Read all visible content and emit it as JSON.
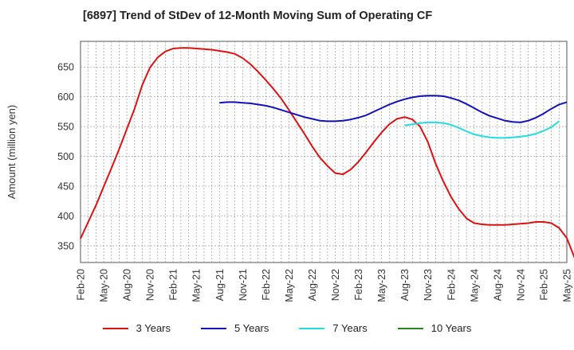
{
  "chart_data": {
    "type": "line",
    "title": "[6897]  Trend of StDev of 12-Month Moving Sum of Operating CF",
    "xlabel": "",
    "ylabel": "Amount (million yen)",
    "ylim": [
      322,
      693
    ],
    "yticks": [
      350,
      400,
      450,
      500,
      550,
      600,
      650
    ],
    "xticks": [
      "Feb-20",
      "May-20",
      "Aug-20",
      "Nov-20",
      "Feb-21",
      "May-21",
      "Aug-21",
      "Nov-21",
      "Feb-22",
      "May-22",
      "Aug-22",
      "Nov-22",
      "Feb-23",
      "May-23",
      "Aug-23",
      "Nov-23",
      "Feb-24",
      "May-24",
      "Aug-24",
      "Nov-24",
      "Feb-25",
      "May-25"
    ],
    "grid": true,
    "legend_position": "bottom",
    "series": [
      {
        "name": "3 Years",
        "color": "#dd1111",
        "start_month": 0,
        "values": [
          362,
          390,
          418,
          449,
          480,
          512,
          546,
          580,
          620,
          649,
          666,
          676,
          681,
          682,
          682,
          681,
          680,
          679,
          677,
          675,
          672,
          665,
          655,
          642,
          628,
          613,
          597,
          578,
          558,
          538,
          517,
          498,
          484,
          472,
          470,
          478,
          491,
          507,
          524,
          540,
          554,
          563,
          566,
          562,
          550,
          524,
          488,
          458,
          432,
          412,
          396,
          388,
          386,
          385,
          385,
          385,
          386,
          387,
          388,
          390,
          390,
          388,
          380,
          363,
          330
        ]
      },
      {
        "name": "5 Years",
        "color": "#1111bb",
        "start_month": 18,
        "values": [
          590,
          591,
          591,
          590,
          589,
          587,
          585,
          582,
          578,
          574,
          570,
          566,
          563,
          560,
          559,
          559,
          560,
          562,
          565,
          569,
          575,
          581,
          587,
          592,
          596,
          599,
          601,
          602,
          602,
          601,
          598,
          594,
          588,
          581,
          574,
          568,
          564,
          560,
          558,
          557,
          560,
          565,
          572,
          580,
          587,
          591
        ]
      },
      {
        "name": "7 Years",
        "color": "#22dddd",
        "start_month": 42,
        "values": [
          552,
          554,
          556,
          557,
          557,
          556,
          553,
          548,
          542,
          537,
          534,
          532,
          531,
          531,
          532,
          533,
          535,
          538,
          543,
          549,
          559
        ]
      },
      {
        "name": "10 Years",
        "color": "#228822",
        "start_month": 0,
        "values": []
      }
    ]
  }
}
